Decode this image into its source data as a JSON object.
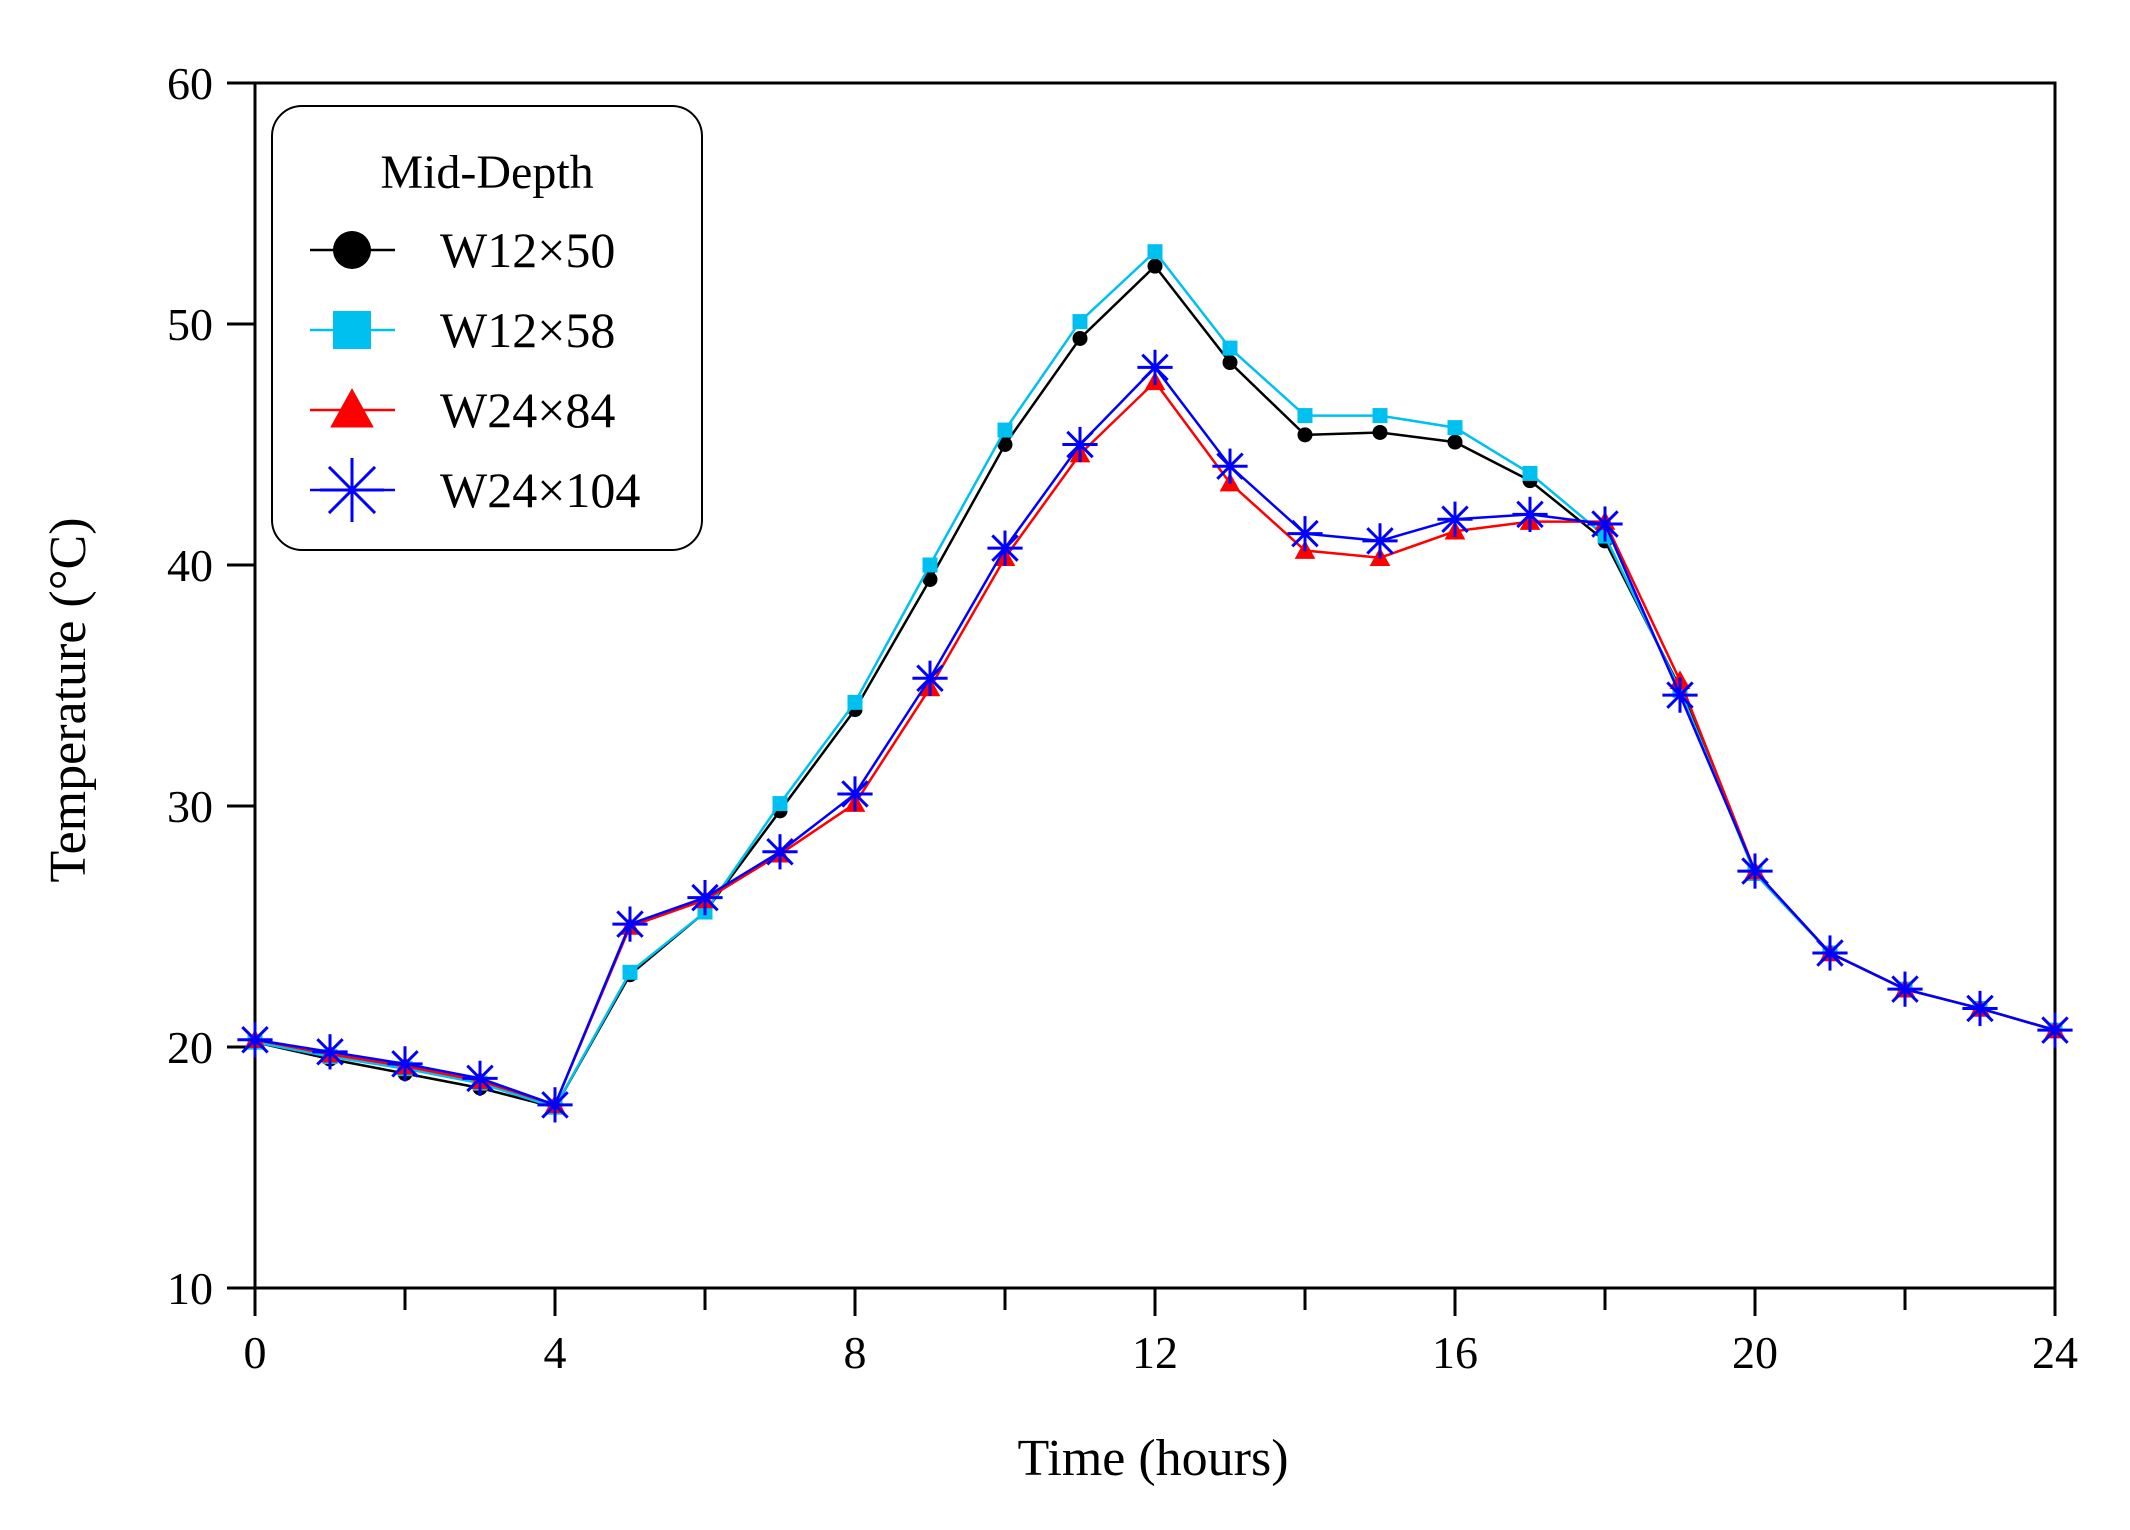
{
  "chart_data": {
    "type": "line",
    "title": "",
    "xlabel": "Time (hours)",
    "ylabel": "Temperature (°C)",
    "xlim": [
      0,
      24
    ],
    "ylim": [
      10,
      60
    ],
    "x_ticks": [
      0,
      4,
      8,
      12,
      16,
      20,
      24
    ],
    "x_minor_ticks": [
      0,
      2,
      4,
      6,
      8,
      10,
      12,
      14,
      16,
      18,
      20,
      22,
      24
    ],
    "y_ticks": [
      10,
      20,
      30,
      40,
      50,
      60
    ],
    "grid": false,
    "legend": {
      "title": "Mid-Depth",
      "placement": "top-left"
    },
    "x": [
      0,
      1,
      2,
      3,
      4,
      5,
      6,
      7,
      8,
      9,
      10,
      11,
      12,
      13,
      14,
      15,
      16,
      17,
      18,
      19,
      20,
      21,
      22,
      23,
      24
    ],
    "series": [
      {
        "name": "W12×50",
        "color": "#000000",
        "marker": "circle",
        "values": [
          20.2,
          19.5,
          18.9,
          18.3,
          17.5,
          23.0,
          25.6,
          29.8,
          34.0,
          39.4,
          45.0,
          49.4,
          52.4,
          48.4,
          45.4,
          45.5,
          45.1,
          43.5,
          41.0,
          34.9,
          27.2,
          23.9,
          22.4,
          21.6,
          20.7
        ]
      },
      {
        "name": "W12×58",
        "color": "#00c0f0",
        "marker": "square",
        "values": [
          20.2,
          19.6,
          19.1,
          18.5,
          17.5,
          23.1,
          25.6,
          30.1,
          34.3,
          40.0,
          45.6,
          50.1,
          53.0,
          49.0,
          46.2,
          46.2,
          45.7,
          43.8,
          41.2,
          34.8,
          27.2,
          23.9,
          22.4,
          21.6,
          20.7
        ]
      },
      {
        "name": "W24×84",
        "color": "#ff0000",
        "marker": "triangle",
        "values": [
          20.3,
          19.7,
          19.2,
          18.6,
          17.6,
          25.0,
          26.1,
          28.0,
          30.1,
          34.9,
          40.3,
          44.6,
          47.6,
          43.4,
          40.6,
          40.3,
          41.4,
          41.8,
          41.8,
          35.2,
          27.3,
          23.9,
          22.4,
          21.6,
          20.7
        ]
      },
      {
        "name": "W24×104",
        "color": "#0000ff",
        "marker": "asterisk",
        "values": [
          20.3,
          19.8,
          19.3,
          18.7,
          17.6,
          25.1,
          26.2,
          28.1,
          30.5,
          35.3,
          40.7,
          45.0,
          48.2,
          44.1,
          41.3,
          41.0,
          41.9,
          42.1,
          41.7,
          34.6,
          27.3,
          23.9,
          22.4,
          21.6,
          20.7
        ]
      }
    ]
  }
}
